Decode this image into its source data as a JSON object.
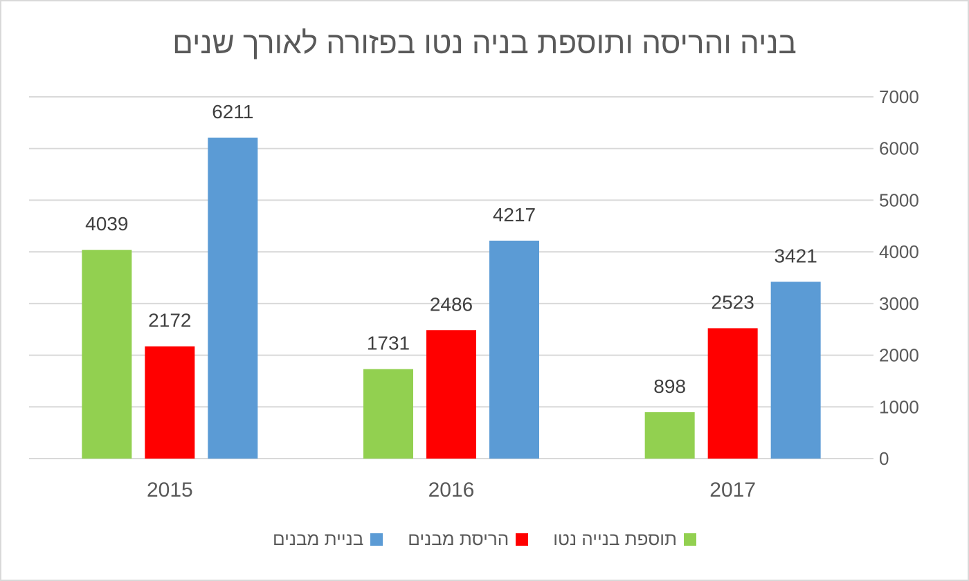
{
  "chart_data": {
    "type": "bar",
    "title": "בניה והריסה ותוספת בניה נטו בפזורה לאורך שנים",
    "categories": [
      "2015",
      "2016",
      "2017"
    ],
    "series": [
      {
        "name": "תוספת בנייה נטו",
        "color": "#92d050",
        "values": [
          4039,
          1731,
          898
        ]
      },
      {
        "name": "הריסת מבנים",
        "color": "#ff0000",
        "values": [
          2172,
          2486,
          2523
        ]
      },
      {
        "name": "בניית מבנים",
        "color": "#5b9bd5",
        "values": [
          6211,
          4217,
          3421
        ]
      }
    ],
    "ylim": [
      0,
      7000
    ],
    "yticks": [
      0,
      1000,
      2000,
      3000,
      4000,
      5000,
      6000,
      7000
    ],
    "yaxis_side": "right",
    "grid": true,
    "legend_position": "bottom",
    "data_labels": true
  }
}
